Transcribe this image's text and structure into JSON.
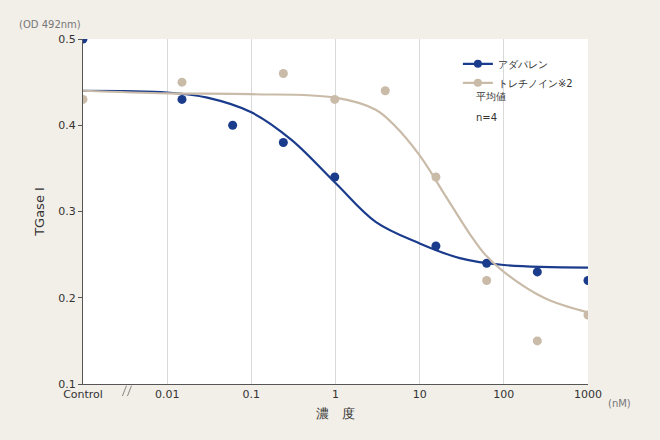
{
  "chart_data": {
    "type": "scatter",
    "y_label": "TGase I",
    "x_label": "濃　度",
    "y_unit": "(OD 492nm)",
    "x_unit": "(nM)",
    "annotations": [
      "平均値",
      "n=4"
    ],
    "log": "x",
    "grid": "x",
    "legend": "top-right",
    "marker": "circle",
    "line_style": "solid",
    "xlim": [
      0.001,
      1000
    ],
    "xticks": [
      {
        "value": 0.001,
        "label": "Control"
      },
      0.01,
      0.1,
      1,
      10,
      100,
      1000
    ],
    "ylim": [
      0.1,
      0.5
    ],
    "yticks": [
      0.1,
      0.2,
      0.3,
      0.4,
      0.5
    ],
    "series": [
      {
        "name": "アダパレン",
        "color": "#1b3c8c",
        "x": [
          0.001,
          0.015,
          0.06,
          0.24,
          0.98,
          15.6,
          62.5,
          250,
          1000
        ],
        "values": [
          0.5,
          0.43,
          0.4,
          0.38,
          0.34,
          0.26,
          0.24,
          0.23,
          0.22
        ],
        "fit": {
          "x": [
            0.001,
            0.01,
            0.03,
            0.1,
            0.3,
            1,
            3,
            10,
            30,
            100,
            1000
          ],
          "values": [
            0.44,
            0.438,
            0.432,
            0.415,
            0.383,
            0.333,
            0.288,
            0.263,
            0.246,
            0.238,
            0.235
          ]
        }
      },
      {
        "name": "トレチノイン※2",
        "color": "#c9bba8",
        "x": [
          0.001,
          0.015,
          0.24,
          0.98,
          3.9,
          15.6,
          62.5,
          250,
          1000
        ],
        "values": [
          0.43,
          0.45,
          0.46,
          0.43,
          0.44,
          0.34,
          0.22,
          0.15,
          0.18
        ],
        "fit": {
          "x": [
            0.001,
            0.01,
            0.1,
            1,
            3,
            5,
            10,
            20,
            40,
            60,
            100,
            300,
            1000
          ],
          "values": [
            0.44,
            0.437,
            0.436,
            0.432,
            0.418,
            0.4,
            0.365,
            0.319,
            0.273,
            0.25,
            0.23,
            0.2,
            0.183
          ]
        }
      }
    ]
  }
}
